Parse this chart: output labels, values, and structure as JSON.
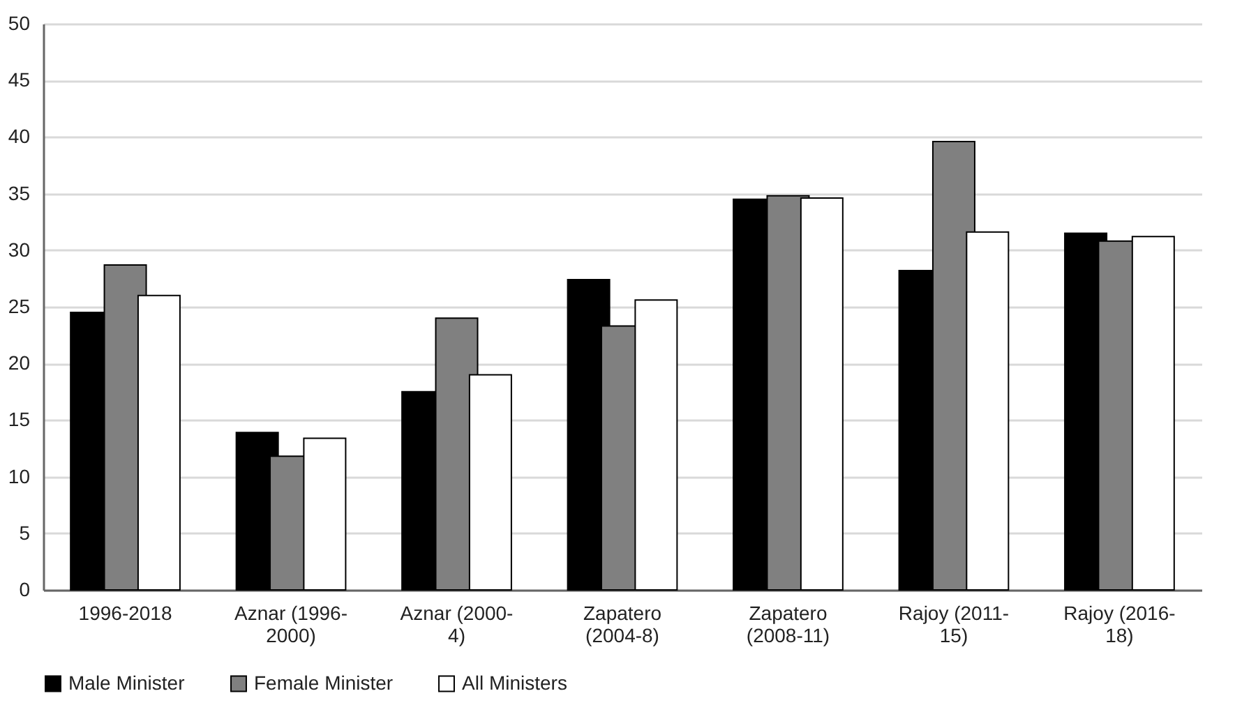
{
  "chart_data": {
    "type": "bar",
    "categories": [
      "1996-2018",
      "Aznar (1996-2000)",
      "Aznar (2000-4)",
      "Zapatero (2004-8)",
      "Zapatero (2008-11)",
      "Rajoy  (2011-15)",
      "Rajoy  (2016-18)"
    ],
    "series": [
      {
        "name": "Male Minister",
        "color": "#000000",
        "values": [
          24.5,
          13.9,
          17.5,
          27.4,
          34.5,
          28.2,
          31.5
        ]
      },
      {
        "name": "Female Minister",
        "color": "#808080",
        "values": [
          28.7,
          11.8,
          24.0,
          23.3,
          34.8,
          39.6,
          30.8
        ]
      },
      {
        "name": "All Ministers",
        "color": "#ffffff",
        "values": [
          26.0,
          13.4,
          19.0,
          25.6,
          34.6,
          31.6,
          31.2
        ]
      }
    ],
    "ylim": [
      0,
      50
    ],
    "yticks": [
      0,
      5,
      10,
      15,
      20,
      25,
      30,
      35,
      40,
      45,
      50
    ],
    "grid": "y",
    "legend": "bottom"
  }
}
